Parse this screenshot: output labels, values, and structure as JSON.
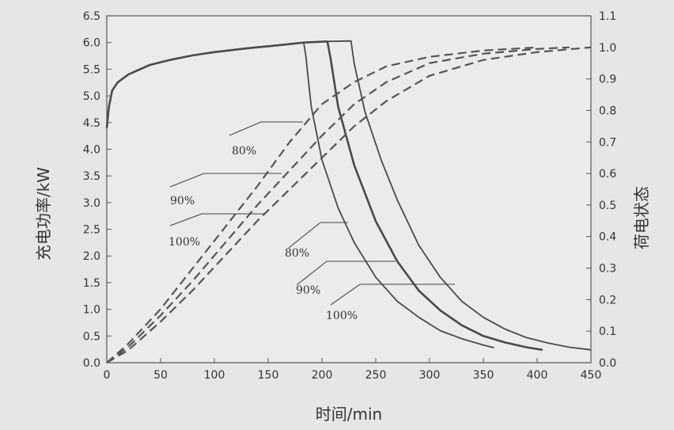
{
  "chart_data": {
    "type": "line",
    "xlabel": "时间/min",
    "ylabel_left": "充电功率/kW",
    "ylabel_right": "荷电状态",
    "xlim": [
      0,
      450
    ],
    "ylim_left": [
      0,
      6.5
    ],
    "ylim_right": [
      0,
      1.1
    ],
    "x_ticks": [
      "0",
      "50",
      "100",
      "150",
      "200",
      "250",
      "300",
      "350",
      "400",
      "450"
    ],
    "y_left_ticks": [
      "0.0",
      "0.5",
      "1.0",
      "1.5",
      "2.0",
      "2.5",
      "3.0",
      "3.5",
      "4.0",
      "4.5",
      "5.0",
      "5.5",
      "6.0",
      "6.5"
    ],
    "y_right_ticks": [
      "0.0",
      "0.1",
      "0.2",
      "0.3",
      "0.4",
      "0.5",
      "0.6",
      "0.7",
      "0.8",
      "0.9",
      "1.0",
      "1.1"
    ],
    "grid": false,
    "power_series": [
      {
        "label": "80%",
        "points": [
          [
            0,
            4.4
          ],
          [
            2,
            4.8
          ],
          [
            5,
            5.1
          ],
          [
            10,
            5.25
          ],
          [
            20,
            5.4
          ],
          [
            40,
            5.58
          ],
          [
            60,
            5.68
          ],
          [
            80,
            5.76
          ],
          [
            100,
            5.82
          ],
          [
            130,
            5.89
          ],
          [
            160,
            5.95
          ],
          [
            183,
            6.0
          ],
          [
            185,
            5.75
          ],
          [
            190,
            4.8
          ],
          [
            200,
            3.8
          ],
          [
            215,
            2.9
          ],
          [
            230,
            2.25
          ],
          [
            250,
            1.6
          ],
          [
            270,
            1.15
          ],
          [
            290,
            0.85
          ],
          [
            310,
            0.6
          ],
          [
            330,
            0.45
          ],
          [
            350,
            0.33
          ],
          [
            360,
            0.28
          ]
        ]
      },
      {
        "label": "90%",
        "points": [
          [
            0,
            4.4
          ],
          [
            2,
            4.8
          ],
          [
            5,
            5.1
          ],
          [
            10,
            5.25
          ],
          [
            20,
            5.4
          ],
          [
            40,
            5.58
          ],
          [
            60,
            5.68
          ],
          [
            80,
            5.76
          ],
          [
            100,
            5.82
          ],
          [
            130,
            5.89
          ],
          [
            160,
            5.95
          ],
          [
            183,
            6.0
          ],
          [
            205,
            6.02
          ],
          [
            208,
            5.7
          ],
          [
            215,
            4.8
          ],
          [
            230,
            3.7
          ],
          [
            250,
            2.65
          ],
          [
            270,
            1.9
          ],
          [
            290,
            1.35
          ],
          [
            310,
            0.98
          ],
          [
            330,
            0.7
          ],
          [
            350,
            0.5
          ],
          [
            370,
            0.38
          ],
          [
            390,
            0.29
          ],
          [
            405,
            0.24
          ]
        ]
      },
      {
        "label": "100%",
        "points": [
          [
            0,
            4.4
          ],
          [
            2,
            4.8
          ],
          [
            5,
            5.1
          ],
          [
            10,
            5.25
          ],
          [
            20,
            5.4
          ],
          [
            40,
            5.58
          ],
          [
            60,
            5.68
          ],
          [
            80,
            5.76
          ],
          [
            100,
            5.82
          ],
          [
            130,
            5.89
          ],
          [
            160,
            5.95
          ],
          [
            183,
            6.0
          ],
          [
            205,
            6.02
          ],
          [
            227,
            6.03
          ],
          [
            230,
            5.6
          ],
          [
            240,
            4.7
          ],
          [
            255,
            3.8
          ],
          [
            270,
            3.05
          ],
          [
            290,
            2.2
          ],
          [
            310,
            1.6
          ],
          [
            330,
            1.15
          ],
          [
            350,
            0.85
          ],
          [
            370,
            0.63
          ],
          [
            390,
            0.47
          ],
          [
            410,
            0.37
          ],
          [
            430,
            0.29
          ],
          [
            450,
            0.24
          ]
        ]
      }
    ],
    "soc_series": [
      {
        "label": "80%",
        "points": [
          [
            0,
            0.0
          ],
          [
            20,
            0.06
          ],
          [
            50,
            0.17
          ],
          [
            80,
            0.3
          ],
          [
            110,
            0.43
          ],
          [
            140,
            0.56
          ],
          [
            170,
            0.7
          ],
          [
            200,
            0.82
          ],
          [
            230,
            0.89
          ],
          [
            260,
            0.94
          ],
          [
            300,
            0.97
          ],
          [
            350,
            0.99
          ],
          [
            400,
            1.0
          ]
        ]
      },
      {
        "label": "90%",
        "points": [
          [
            0,
            0.0
          ],
          [
            20,
            0.05
          ],
          [
            50,
            0.15
          ],
          [
            80,
            0.26
          ],
          [
            110,
            0.38
          ],
          [
            140,
            0.5
          ],
          [
            170,
            0.61
          ],
          [
            200,
            0.72
          ],
          [
            230,
            0.82
          ],
          [
            260,
            0.89
          ],
          [
            300,
            0.95
          ],
          [
            350,
            0.98
          ],
          [
            400,
            0.995
          ],
          [
            430,
            1.0
          ]
        ]
      },
      {
        "label": "100%",
        "points": [
          [
            0,
            0.0
          ],
          [
            20,
            0.04
          ],
          [
            50,
            0.13
          ],
          [
            80,
            0.23
          ],
          [
            110,
            0.34
          ],
          [
            140,
            0.45
          ],
          [
            170,
            0.55
          ],
          [
            200,
            0.65
          ],
          [
            230,
            0.75
          ],
          [
            260,
            0.83
          ],
          [
            300,
            0.91
          ],
          [
            350,
            0.96
          ],
          [
            400,
            0.985
          ],
          [
            450,
            1.0
          ]
        ]
      }
    ],
    "annotations": [
      "80%",
      "90%",
      "100%",
      "80%",
      "90%",
      "100%"
    ]
  }
}
